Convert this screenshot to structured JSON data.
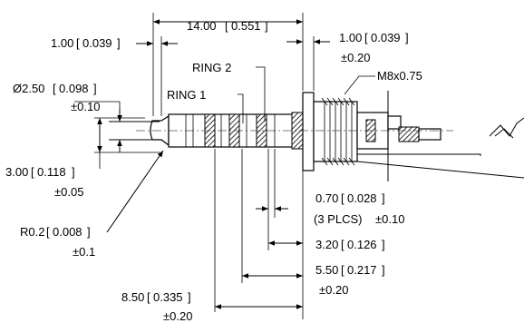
{
  "dimensions": {
    "overall_length": {
      "value": "14.00",
      "inch": "0.551"
    },
    "tip_length": {
      "value": "1.00",
      "inch": "0.039"
    },
    "flange_thickness": {
      "value": "1.00",
      "inch": "0.039",
      "tol": "±0.20"
    },
    "tip_diameter": {
      "prefix": "Ø2.50",
      "inch": "0.098",
      "tol": "±0.10"
    },
    "tip_width": {
      "value": "3.00",
      "inch": "0.118",
      "tol": "±0.05"
    },
    "tip_radius": {
      "value": "R0.2",
      "inch": "0.008",
      "tol": "±0.1"
    },
    "ring_gap": {
      "value": "0.70",
      "inch": "0.028",
      "note": "(3 PLCS)",
      "tol": "±0.10"
    },
    "sleeve_length": {
      "value": "3.20",
      "inch": "0.126"
    },
    "ring2_to_flange": {
      "value": "5.50",
      "inch": "0.217",
      "tol": "±0.20"
    },
    "ring1_to_flange": {
      "value": "8.50",
      "inch": "0.335",
      "tol": "±0.20"
    }
  },
  "labels": {
    "ring1": "RING 1",
    "ring2": "RING 2",
    "thread": "M8x0.75"
  },
  "colors": {
    "line": "#000000",
    "hatch": "#000000",
    "background": "#ffffff"
  }
}
